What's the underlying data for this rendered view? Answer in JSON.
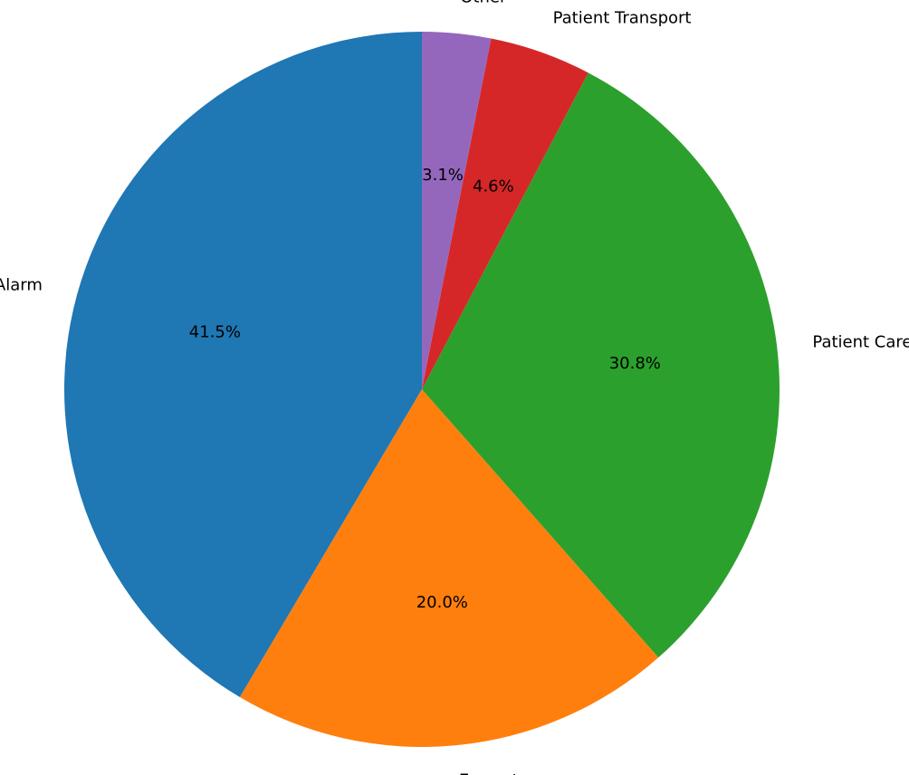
{
  "chart_data": {
    "type": "pie",
    "categories": [
      "Alarm",
      "En-route",
      "Patient Care",
      "Patient Transport",
      "Other"
    ],
    "values": [
      41.5,
      20.0,
      30.8,
      4.6,
      3.1
    ],
    "value_labels": [
      "41.5%",
      "20.0%",
      "30.8%",
      "4.6%",
      "3.1%"
    ],
    "colors": [
      "#1f77b4",
      "#ff7f0e",
      "#2ca02c",
      "#d62728",
      "#9467bd"
    ]
  }
}
